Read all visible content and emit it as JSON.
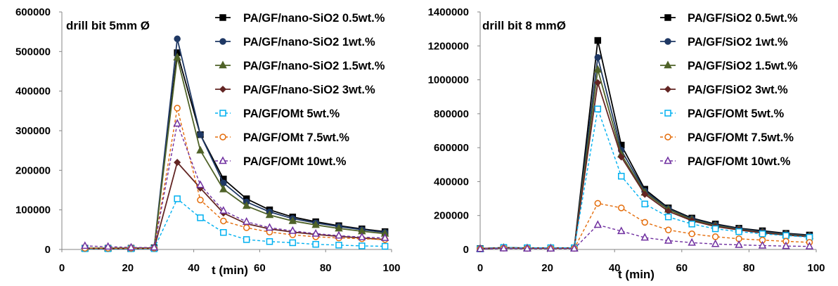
{
  "chart_data": [
    {
      "type": "line",
      "title": "drill bit 5mm Ø",
      "xlabel": "t (min)",
      "ylabel": "",
      "xlim": [
        0,
        100
      ],
      "ylim": [
        0,
        600000
      ],
      "xticks": [
        "0",
        "20",
        "40",
        "60",
        "80",
        "100"
      ],
      "yticks": [
        "0",
        "100000",
        "200000",
        "300000",
        "400000",
        "500000",
        "600000"
      ],
      "legend_position": "top-right",
      "x": [
        7,
        14,
        21,
        28,
        35,
        42,
        49,
        56,
        63,
        70,
        77,
        84,
        91,
        98
      ],
      "series": [
        {
          "name": "PA/GF/nano-SiO2 0.5wt.%",
          "color": "#000000",
          "marker": "square-filled",
          "dashed": false,
          "values": [
            3000,
            3000,
            3000,
            4000,
            497000,
            290000,
            178000,
            128000,
            100000,
            82000,
            70000,
            60000,
            52000,
            45000
          ]
        },
        {
          "name": "PA/GF/nano-SiO2 1wt.%",
          "color": "#1f3864",
          "marker": "circle-filled",
          "dashed": false,
          "values": [
            3000,
            3000,
            3000,
            4000,
            532000,
            290000,
            168000,
            120000,
            95000,
            78000,
            67000,
            58000,
            50000,
            43000
          ]
        },
        {
          "name": "PA/GF/nano-SiO2 1.5wt.%",
          "color": "#4f6228",
          "marker": "triangle-filled",
          "dashed": false,
          "values": [
            3000,
            3000,
            3000,
            4000,
            485000,
            250000,
            152000,
            110000,
            87000,
            72000,
            62000,
            53000,
            46000,
            40000
          ]
        },
        {
          "name": "PA/GF/nano-SiO2 3wt.%",
          "color": "#632523",
          "marker": "diamond-filled",
          "dashed": false,
          "values": [
            2000,
            2000,
            2000,
            3000,
            220000,
            155000,
            92000,
            65000,
            52000,
            44000,
            38000,
            33000,
            29000,
            25000
          ]
        },
        {
          "name": "PA/GF/OMt 5wt.%",
          "color": "#00b0f0",
          "marker": "square-open",
          "dashed": true,
          "values": [
            2000,
            2000,
            2000,
            2000,
            128000,
            80000,
            43000,
            25000,
            20000,
            17000,
            13000,
            11000,
            9000,
            8000
          ]
        },
        {
          "name": "PA/GF/OMt 7.5wt.%",
          "color": "#e46c0a",
          "marker": "circle-open",
          "dashed": true,
          "values": [
            3000,
            3000,
            3000,
            3000,
            357000,
            125000,
            72000,
            55000,
            44000,
            37000,
            32000,
            29000,
            27000,
            25000
          ]
        },
        {
          "name": "PA/GF/OMt 10wt.%",
          "color": "#7030a0",
          "marker": "triangle-open",
          "dashed": true,
          "values": [
            9000,
            7000,
            5000,
            5000,
            318000,
            163000,
            98000,
            70000,
            55000,
            47000,
            40000,
            35000,
            31000,
            29000
          ]
        }
      ]
    },
    {
      "type": "line",
      "title": "drill bit 8 mmØ",
      "xlabel": "t (min)",
      "ylabel": "",
      "xlim": [
        0,
        100
      ],
      "ylim": [
        0,
        1400000
      ],
      "xticks": [
        "0",
        "20",
        "40",
        "60",
        "80",
        "100"
      ],
      "yticks": [
        "0",
        "200000",
        "400000",
        "600000",
        "800000",
        "1000000",
        "1200000",
        "1400000"
      ],
      "legend_position": "top-right",
      "x": [
        0,
        7,
        14,
        21,
        28,
        35,
        42,
        49,
        56,
        63,
        70,
        77,
        84,
        91,
        98
      ],
      "series": [
        {
          "name": "PA/GF/SiO2 0.5wt.%",
          "color": "#000000",
          "marker": "square-filled",
          "dashed": false,
          "values": [
            5000,
            10000,
            8000,
            8000,
            8000,
            1232000,
            615000,
            355000,
            245000,
            185000,
            150000,
            125000,
            110000,
            95000,
            85000
          ]
        },
        {
          "name": "PA/GF/SiO2 1wt.%",
          "color": "#1f3864",
          "marker": "circle-filled",
          "dashed": false,
          "values": [
            5000,
            10000,
            8000,
            8000,
            8000,
            1132000,
            585000,
            345000,
            240000,
            180000,
            145000,
            122000,
            105000,
            92000,
            82000
          ]
        },
        {
          "name": "PA/GF/SiO2 1.5wt.%",
          "color": "#4f6228",
          "marker": "triangle-filled",
          "dashed": false,
          "values": [
            5000,
            10000,
            8000,
            8000,
            8000,
            1060000,
            560000,
            335000,
            235000,
            175000,
            140000,
            118000,
            100000,
            88000,
            78000
          ]
        },
        {
          "name": "PA/GF/SiO2 3wt.%",
          "color": "#632523",
          "marker": "diamond-filled",
          "dashed": false,
          "values": [
            5000,
            10000,
            8000,
            8000,
            8000,
            983000,
            545000,
            325000,
            225000,
            170000,
            135000,
            115000,
            98000,
            85000,
            75000
          ]
        },
        {
          "name": "PA/GF/OMt 5wt.%",
          "color": "#00b0f0",
          "marker": "square-open",
          "dashed": true,
          "values": [
            3000,
            12000,
            10000,
            10000,
            10000,
            828000,
            432000,
            268000,
            192000,
            150000,
            122000,
            105000,
            92000,
            82000,
            72000
          ]
        },
        {
          "name": "PA/GF/OMt 7.5wt.%",
          "color": "#e46c0a",
          "marker": "circle-open",
          "dashed": true,
          "values": [
            3000,
            8000,
            6000,
            6000,
            6000,
            272000,
            245000,
            160000,
            115000,
            92000,
            75000,
            63000,
            55000,
            48000,
            42000
          ]
        },
        {
          "name": "PA/GF/OMt 10wt.%",
          "color": "#7030a0",
          "marker": "triangle-open",
          "dashed": true,
          "values": [
            3000,
            6000,
            5000,
            5000,
            5000,
            145000,
            108000,
            70000,
            52000,
            40000,
            32000,
            27000,
            23000,
            20000,
            18000
          ]
        }
      ]
    }
  ]
}
